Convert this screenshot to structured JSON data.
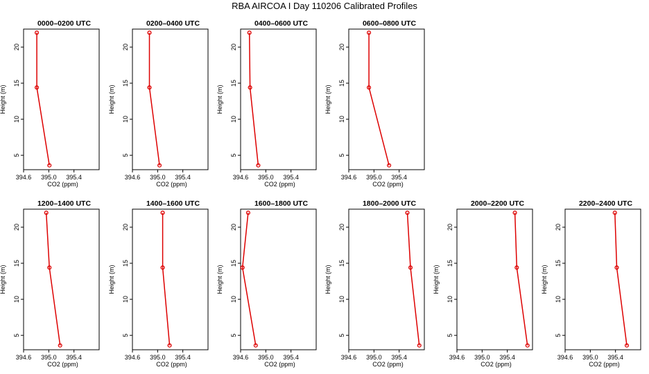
{
  "figure": {
    "title": "RBA AIRCOA I  Day 110206  Calibrated Profiles"
  },
  "chart_data": [
    {
      "type": "line",
      "title": "0000–0200 UTC",
      "xlabel": "CO2 (ppm)",
      "ylabel": "Height (m)",
      "xlim": [
        394.6,
        395.8
      ],
      "ylim": [
        3,
        22.5
      ],
      "xticks": [
        394.6,
        395.0,
        395.4
      ],
      "yticks": [
        5,
        10,
        15,
        20
      ],
      "xticklabels": [
        "394.6",
        "395.0",
        "395.4"
      ],
      "yticklabels": [
        "5",
        "10",
        "15",
        "20"
      ],
      "series": [
        {
          "x": [
            394.81,
            394.81,
            395.01
          ],
          "y": [
            22,
            14.4,
            3.6
          ]
        }
      ],
      "color": "#dd0000",
      "grid": false
    },
    {
      "type": "line",
      "title": "0200–0400 UTC",
      "xlabel": "CO2 (ppm)",
      "ylabel": "Height (m)",
      "xlim": [
        394.6,
        395.8
      ],
      "ylim": [
        3,
        22.5
      ],
      "xticks": [
        394.6,
        395.0,
        395.4
      ],
      "yticks": [
        5,
        10,
        15,
        20
      ],
      "xticklabels": [
        "394.6",
        "395.0",
        "395.4"
      ],
      "yticklabels": [
        "5",
        "10",
        "15",
        "20"
      ],
      "series": [
        {
          "x": [
            394.87,
            394.87,
            395.03
          ],
          "y": [
            22,
            14.4,
            3.6
          ]
        }
      ],
      "color": "#dd0000",
      "grid": false
    },
    {
      "type": "line",
      "title": "0400–0600 UTC",
      "xlabel": "CO2 (ppm)",
      "ylabel": "Height (m)",
      "xlim": [
        394.6,
        395.8
      ],
      "ylim": [
        3,
        22.5
      ],
      "xticks": [
        394.6,
        395.0,
        395.4
      ],
      "yticks": [
        5,
        10,
        15,
        20
      ],
      "xticklabels": [
        "394.6",
        "395.0",
        "395.4"
      ],
      "yticklabels": [
        "5",
        "10",
        "15",
        "20"
      ],
      "series": [
        {
          "x": [
            394.74,
            394.75,
            394.88
          ],
          "y": [
            22,
            14.4,
            3.6
          ]
        }
      ],
      "color": "#dd0000",
      "grid": false
    },
    {
      "type": "line",
      "title": "0600–0800 UTC",
      "xlabel": "CO2 (ppm)",
      "ylabel": "Height (m)",
      "xlim": [
        394.6,
        395.8
      ],
      "ylim": [
        3,
        22.5
      ],
      "xticks": [
        394.6,
        395.0,
        395.4
      ],
      "yticks": [
        5,
        10,
        15,
        20
      ],
      "xticklabels": [
        "394.6",
        "395.0",
        "395.4"
      ],
      "yticklabels": [
        "5",
        "10",
        "15",
        "20"
      ],
      "series": [
        {
          "x": [
            394.92,
            394.92,
            395.24
          ],
          "y": [
            22,
            14.4,
            3.6
          ]
        }
      ],
      "color": "#dd0000",
      "grid": false
    },
    {
      "type": "line",
      "title": "1200–1400 UTC",
      "xlabel": "CO2 (ppm)",
      "ylabel": "Height (m)",
      "xlim": [
        394.6,
        395.8
      ],
      "ylim": [
        3,
        22.5
      ],
      "xticks": [
        394.6,
        395.0,
        395.4
      ],
      "yticks": [
        5,
        10,
        15,
        20
      ],
      "xticklabels": [
        "394.6",
        "395.0",
        "395.4"
      ],
      "yticklabels": [
        "5",
        "10",
        "15",
        "20"
      ],
      "series": [
        {
          "x": [
            394.96,
            395.01,
            395.18
          ],
          "y": [
            22,
            14.4,
            3.6
          ]
        }
      ],
      "color": "#dd0000",
      "grid": false
    },
    {
      "type": "line",
      "title": "1400–1600 UTC",
      "xlabel": "CO2 (ppm)",
      "ylabel": "Height (m)",
      "xlim": [
        394.6,
        395.8
      ],
      "ylim": [
        3,
        22.5
      ],
      "xticks": [
        394.6,
        395.0,
        395.4
      ],
      "yticks": [
        5,
        10,
        15,
        20
      ],
      "xticklabels": [
        "394.6",
        "395.0",
        "395.4"
      ],
      "yticklabels": [
        "5",
        "10",
        "15",
        "20"
      ],
      "series": [
        {
          "x": [
            395.08,
            395.08,
            395.19
          ],
          "y": [
            22,
            14.4,
            3.6
          ]
        }
      ],
      "color": "#dd0000",
      "grid": false
    },
    {
      "type": "line",
      "title": "1600–1800 UTC",
      "xlabel": "CO2 (ppm)",
      "ylabel": "Height (m)",
      "xlim": [
        394.6,
        395.8
      ],
      "ylim": [
        3,
        22.5
      ],
      "xticks": [
        394.6,
        395.0,
        395.4
      ],
      "yticks": [
        5,
        10,
        15,
        20
      ],
      "xticklabels": [
        "394.6",
        "395.0",
        "395.4"
      ],
      "yticklabels": [
        "5",
        "10",
        "15",
        "20"
      ],
      "series": [
        {
          "x": [
            394.72,
            394.63,
            394.84
          ],
          "y": [
            22,
            14.4,
            3.6
          ]
        }
      ],
      "color": "#dd0000",
      "grid": false
    },
    {
      "type": "line",
      "title": "1800–2000 UTC",
      "xlabel": "CO2 (ppm)",
      "ylabel": "Height (m)",
      "xlim": [
        394.6,
        395.8
      ],
      "ylim": [
        3,
        22.5
      ],
      "xticks": [
        394.6,
        395.0,
        395.4
      ],
      "yticks": [
        5,
        10,
        15,
        20
      ],
      "xticklabels": [
        "394.6",
        "395.0",
        "395.4"
      ],
      "yticklabels": [
        "5",
        "10",
        "15",
        "20"
      ],
      "series": [
        {
          "x": [
            395.53,
            395.58,
            395.72
          ],
          "y": [
            22,
            14.4,
            3.6
          ]
        }
      ],
      "color": "#dd0000",
      "grid": false
    },
    {
      "type": "line",
      "title": "2000–2200 UTC",
      "xlabel": "CO2 (ppm)",
      "ylabel": "Height (m)",
      "xlim": [
        394.6,
        395.8
      ],
      "ylim": [
        3,
        22.5
      ],
      "xticks": [
        394.6,
        395.0,
        395.4
      ],
      "yticks": [
        5,
        10,
        15,
        20
      ],
      "xticklabels": [
        "394.6",
        "395.0",
        "395.4"
      ],
      "yticklabels": [
        "5",
        "10",
        "15",
        "20"
      ],
      "series": [
        {
          "x": [
            395.52,
            395.55,
            395.72
          ],
          "y": [
            22,
            14.4,
            3.6
          ]
        }
      ],
      "color": "#dd0000",
      "grid": false
    },
    {
      "type": "line",
      "title": "2200–2400 UTC",
      "xlabel": "CO2 (ppm)",
      "ylabel": "Height (m)",
      "xlim": [
        394.6,
        395.8
      ],
      "ylim": [
        3,
        22.5
      ],
      "xticks": [
        394.6,
        395.0,
        395.4
      ],
      "yticks": [
        5,
        10,
        15,
        20
      ],
      "xticklabels": [
        "394.6",
        "395.0",
        "395.4"
      ],
      "yticklabels": [
        "5",
        "10",
        "15",
        "20"
      ],
      "series": [
        {
          "x": [
            395.39,
            395.42,
            395.58
          ],
          "y": [
            22,
            14.4,
            3.6
          ]
        }
      ],
      "color": "#dd0000",
      "grid": false
    }
  ]
}
